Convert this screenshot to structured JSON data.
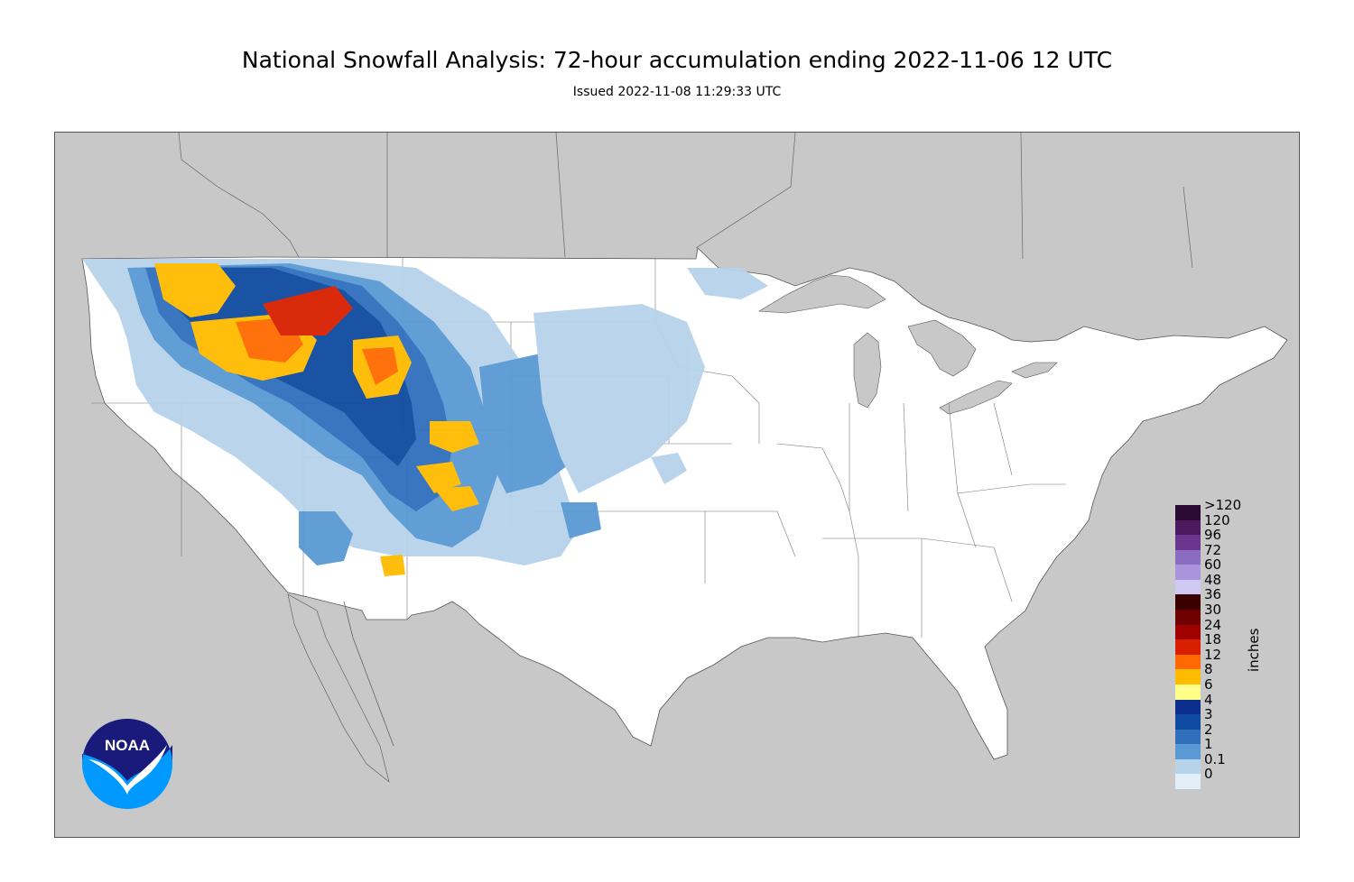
{
  "header": {
    "title": "National Snowfall Analysis: 72-hour accumulation ending 2022-11-06 12 UTC",
    "subtitle": "Issued 2022-11-08 11:29:33 UTC"
  },
  "logo": {
    "text": "NOAA",
    "icon": "noaa-logo-icon"
  },
  "legend": {
    "units": "inches",
    "bins": [
      {
        "label": ">120",
        "color": "#2a0a33"
      },
      {
        "label": "120",
        "color": "#4b1a5e"
      },
      {
        "label": "96",
        "color": "#6c3590"
      },
      {
        "label": "72",
        "color": "#8a6cc0"
      },
      {
        "label": "60",
        "color": "#a895dc"
      },
      {
        "label": "48",
        "color": "#cfc8f2"
      },
      {
        "label": "36",
        "color": "#3a0000"
      },
      {
        "label": "30",
        "color": "#6e0000"
      },
      {
        "label": "24",
        "color": "#a00000"
      },
      {
        "label": "18",
        "color": "#d82000"
      },
      {
        "label": "12",
        "color": "#ff6a00"
      },
      {
        "label": "8",
        "color": "#ffbb00"
      },
      {
        "label": "6",
        "color": "#ffff8a"
      },
      {
        "label": "4",
        "color": "#0b2f8a"
      },
      {
        "label": "3",
        "color": "#0e4aa0"
      },
      {
        "label": "2",
        "color": "#2f6fbc"
      },
      {
        "label": "1",
        "color": "#5a99d4"
      },
      {
        "label": "0.1",
        "color": "#b7d3ea"
      },
      {
        "label": "0",
        "color": "#e2eef8"
      }
    ]
  },
  "map": {
    "land_color": "#ffffff",
    "outside_color": "#c8c8c8",
    "border_color": "#555555"
  }
}
